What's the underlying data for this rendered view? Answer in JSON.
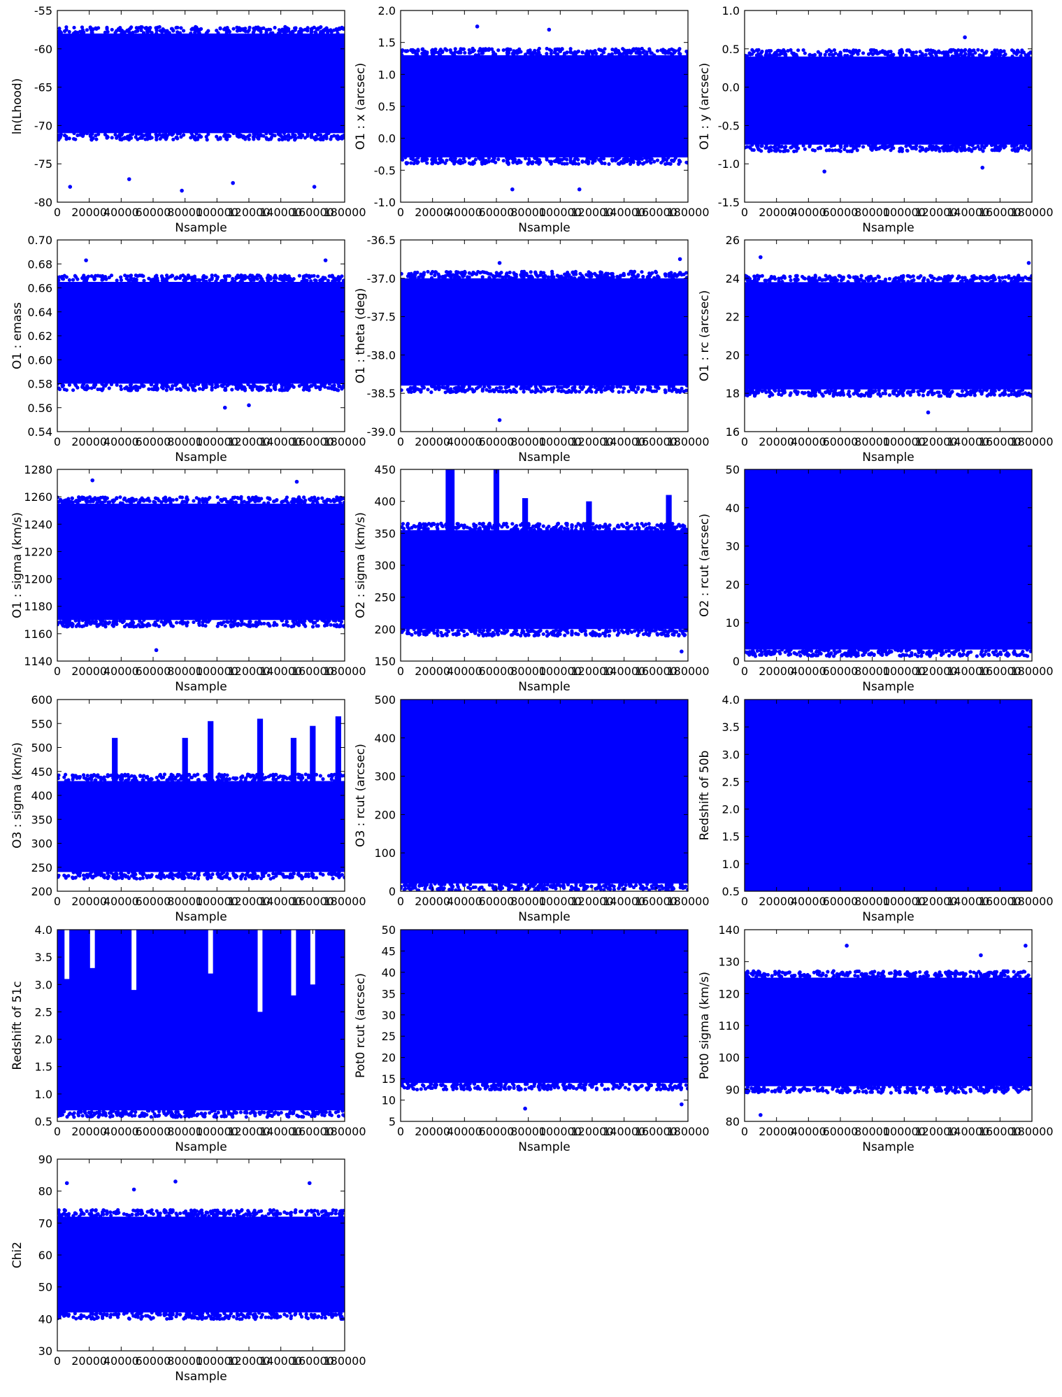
{
  "chart_data": [
    {
      "type": "scatter",
      "xlabel": "Nsample",
      "ylabel": "ln(Lhood)",
      "xlim": [
        0,
        180000
      ],
      "ylim": [
        -80,
        -55
      ],
      "xticks": [
        0,
        20000,
        40000,
        60000,
        80000,
        100000,
        120000,
        140000,
        160000,
        180000
      ],
      "yticks": [
        -80,
        -75,
        -70,
        -65,
        -60,
        -55
      ],
      "band": {
        "core_low": -71,
        "core_high": -58,
        "outliers": [
          [
            8000,
            -78
          ],
          [
            78000,
            -78.5
          ],
          [
            110000,
            -77.5
          ],
          [
            161000,
            -78
          ],
          [
            45000,
            -77
          ]
        ]
      }
    },
    {
      "type": "scatter",
      "xlabel": "Nsample",
      "ylabel": "O1 : x (arcsec)",
      "xlim": [
        0,
        180000
      ],
      "ylim": [
        -1.0,
        2.0
      ],
      "xticks": [
        0,
        20000,
        40000,
        60000,
        80000,
        100000,
        120000,
        140000,
        160000,
        180000
      ],
      "yticks": [
        -1.0,
        -0.5,
        0.0,
        0.5,
        1.0,
        1.5,
        2.0
      ],
      "band": {
        "core_low": -0.3,
        "core_high": 1.3,
        "outliers": [
          [
            48000,
            1.75
          ],
          [
            93000,
            1.7
          ],
          [
            70000,
            -0.8
          ],
          [
            112000,
            -0.8
          ]
        ]
      }
    },
    {
      "type": "scatter",
      "xlabel": "Nsample",
      "ylabel": "O1 : y (arcsec)",
      "xlim": [
        0,
        180000
      ],
      "ylim": [
        -1.5,
        1.0
      ],
      "xticks": [
        0,
        20000,
        40000,
        60000,
        80000,
        100000,
        120000,
        140000,
        160000,
        180000
      ],
      "yticks": [
        -1.5,
        -1.0,
        -0.5,
        0.0,
        0.5,
        1.0
      ],
      "band": {
        "core_low": -0.75,
        "core_high": 0.4,
        "outliers": [
          [
            138000,
            0.65
          ],
          [
            50000,
            -1.1
          ],
          [
            149000,
            -1.05
          ]
        ]
      }
    },
    {
      "type": "scatter",
      "xlabel": "Nsample",
      "ylabel": "O1 : emass",
      "xlim": [
        0,
        180000
      ],
      "ylim": [
        0.54,
        0.7
      ],
      "xticks": [
        0,
        20000,
        40000,
        60000,
        80000,
        100000,
        120000,
        140000,
        160000,
        180000
      ],
      "yticks": [
        0.54,
        0.56,
        0.58,
        0.6,
        0.62,
        0.64,
        0.66,
        0.68,
        0.7
      ],
      "band": {
        "core_low": 0.58,
        "core_high": 0.665,
        "outliers": [
          [
            18000,
            0.683
          ],
          [
            168000,
            0.683
          ],
          [
            105000,
            0.56
          ],
          [
            120000,
            0.562
          ]
        ]
      }
    },
    {
      "type": "scatter",
      "xlabel": "Nsample",
      "ylabel": "O1 : theta (deg)",
      "xlim": [
        0,
        180000
      ],
      "ylim": [
        -39.0,
        -36.5
      ],
      "xticks": [
        0,
        20000,
        40000,
        60000,
        80000,
        100000,
        120000,
        140000,
        160000,
        180000
      ],
      "yticks": [
        -39.0,
        -38.5,
        -38.0,
        -37.5,
        -37.0,
        -36.5
      ],
      "band": {
        "core_low": -38.4,
        "core_high": -37.0,
        "outliers": [
          [
            62000,
            -38.85
          ],
          [
            175000,
            -36.75
          ],
          [
            62000,
            -36.8
          ]
        ]
      }
    },
    {
      "type": "scatter",
      "xlabel": "Nsample",
      "ylabel": "O1 : rc (arcsec)",
      "xlim": [
        0,
        180000
      ],
      "ylim": [
        16,
        26
      ],
      "xticks": [
        0,
        20000,
        40000,
        60000,
        80000,
        100000,
        120000,
        140000,
        160000,
        180000
      ],
      "yticks": [
        16,
        18,
        20,
        22,
        24,
        26
      ],
      "band": {
        "core_low": 18.2,
        "core_high": 23.8,
        "outliers": [
          [
            10000,
            25.1
          ],
          [
            178000,
            24.8
          ],
          [
            115000,
            17.0
          ]
        ]
      }
    },
    {
      "type": "scatter",
      "xlabel": "Nsample",
      "ylabel": "O1 : sigma (km/s)",
      "xlim": [
        0,
        180000
      ],
      "ylim": [
        1140,
        1280
      ],
      "xticks": [
        0,
        20000,
        40000,
        60000,
        80000,
        100000,
        120000,
        140000,
        160000,
        180000
      ],
      "yticks": [
        1140,
        1160,
        1180,
        1200,
        1220,
        1240,
        1260,
        1280
      ],
      "band": {
        "core_low": 1170,
        "core_high": 1255,
        "outliers": [
          [
            22000,
            1272
          ],
          [
            150000,
            1271
          ],
          [
            62000,
            1148
          ]
        ]
      }
    },
    {
      "type": "scatter",
      "xlabel": "Nsample",
      "ylabel": "O2 : sigma (km/s)",
      "xlim": [
        0,
        180000
      ],
      "ylim": [
        150,
        450
      ],
      "xticks": [
        0,
        20000,
        40000,
        60000,
        80000,
        100000,
        120000,
        140000,
        160000,
        180000
      ],
      "yticks": [
        150,
        200,
        250,
        300,
        350,
        400,
        450
      ],
      "band": {
        "core_low": 200,
        "core_high": 355,
        "spikes": [
          [
            30000,
            450
          ],
          [
            32000,
            450
          ],
          [
            60000,
            450
          ],
          [
            78000,
            405
          ],
          [
            118000,
            400
          ],
          [
            168000,
            410
          ]
        ],
        "outliers": [
          [
            176000,
            165
          ]
        ]
      }
    },
    {
      "type": "scatter",
      "xlabel": "Nsample",
      "ylabel": "O2 : rcut (arcsec)",
      "xlim": [
        0,
        180000
      ],
      "ylim": [
        0,
        50
      ],
      "xticks": [
        0,
        20000,
        40000,
        60000,
        80000,
        100000,
        120000,
        140000,
        160000,
        180000
      ],
      "yticks": [
        0,
        10,
        20,
        30,
        40,
        50
      ],
      "band": {
        "core_low": 3,
        "core_high": 50
      }
    },
    {
      "type": "scatter",
      "xlabel": "Nsample",
      "ylabel": "O3 : sigma (km/s)",
      "xlim": [
        0,
        180000
      ],
      "ylim": [
        200,
        600
      ],
      "xticks": [
        0,
        20000,
        40000,
        60000,
        80000,
        100000,
        120000,
        140000,
        160000,
        180000
      ],
      "yticks": [
        200,
        250,
        300,
        350,
        400,
        450,
        500,
        550,
        600
      ],
      "band": {
        "core_low": 240,
        "core_high": 430,
        "spikes": [
          [
            36000,
            520
          ],
          [
            80000,
            520
          ],
          [
            96000,
            555
          ],
          [
            127000,
            560
          ],
          [
            148000,
            520
          ],
          [
            160000,
            545
          ],
          [
            176000,
            565
          ]
        ]
      }
    },
    {
      "type": "scatter",
      "xlabel": "Nsample",
      "ylabel": "O3 : rcut (arcsec)",
      "xlim": [
        0,
        180000
      ],
      "ylim": [
        0,
        500
      ],
      "xticks": [
        0,
        20000,
        40000,
        60000,
        80000,
        100000,
        120000,
        140000,
        160000,
        180000
      ],
      "yticks": [
        0,
        100,
        200,
        300,
        400,
        500
      ],
      "band": {
        "core_low": 20,
        "core_high": 500
      }
    },
    {
      "type": "scatter",
      "xlabel": "Nsample",
      "ylabel": "Redshift of 50b",
      "xlim": [
        0,
        180000
      ],
      "ylim": [
        0.5,
        4.0
      ],
      "xticks": [
        0,
        20000,
        40000,
        60000,
        80000,
        100000,
        120000,
        140000,
        160000,
        180000
      ],
      "yticks": [
        0.5,
        1.0,
        1.5,
        2.0,
        2.5,
        3.0,
        3.5,
        4.0
      ],
      "band": {
        "core_low": 0.5,
        "core_high": 4.0
      }
    },
    {
      "type": "scatter",
      "xlabel": "Nsample",
      "ylabel": "Redshift of 51c",
      "xlim": [
        0,
        180000
      ],
      "ylim": [
        0.5,
        4.0
      ],
      "xticks": [
        0,
        20000,
        40000,
        60000,
        80000,
        100000,
        120000,
        140000,
        160000,
        180000
      ],
      "yticks": [
        0.5,
        1.0,
        1.5,
        2.0,
        2.5,
        3.0,
        3.5,
        4.0
      ],
      "band": {
        "core_low": 0.7,
        "core_high": 4.0,
        "gaps": [
          [
            6000,
            3.1
          ],
          [
            22000,
            3.3
          ],
          [
            48000,
            2.9
          ],
          [
            96000,
            3.2
          ],
          [
            127000,
            2.5
          ],
          [
            148000,
            2.8
          ],
          [
            160000,
            3.0
          ]
        ]
      }
    },
    {
      "type": "scatter",
      "xlabel": "Nsample",
      "ylabel": "Pot0 rcut (arcsec)",
      "xlim": [
        0,
        180000
      ],
      "ylim": [
        5,
        50
      ],
      "xticks": [
        0,
        20000,
        40000,
        60000,
        80000,
        100000,
        120000,
        140000,
        160000,
        180000
      ],
      "yticks": [
        5,
        10,
        15,
        20,
        25,
        30,
        35,
        40,
        45,
        50
      ],
      "band": {
        "core_low": 14,
        "core_high": 50,
        "outliers": [
          [
            78000,
            8
          ],
          [
            176000,
            9
          ]
        ]
      }
    },
    {
      "type": "scatter",
      "xlabel": "Nsample",
      "ylabel": "Pot0 sigma (km/s)",
      "xlim": [
        0,
        180000
      ],
      "ylim": [
        80,
        140
      ],
      "xticks": [
        0,
        20000,
        40000,
        60000,
        80000,
        100000,
        120000,
        140000,
        160000,
        180000
      ],
      "yticks": [
        80,
        90,
        100,
        110,
        120,
        130,
        140
      ],
      "band": {
        "core_low": 91,
        "core_high": 125,
        "outliers": [
          [
            64000,
            135
          ],
          [
            176000,
            135
          ],
          [
            10000,
            82
          ],
          [
            148000,
            132
          ]
        ]
      }
    },
    {
      "type": "scatter",
      "xlabel": "Nsample",
      "ylabel": "Chi2",
      "xlim": [
        0,
        180000
      ],
      "ylim": [
        30,
        90
      ],
      "xticks": [
        0,
        20000,
        40000,
        60000,
        80000,
        100000,
        120000,
        140000,
        160000,
        180000
      ],
      "yticks": [
        30,
        40,
        50,
        60,
        70,
        80,
        90
      ],
      "band": {
        "core_low": 42,
        "core_high": 72,
        "outliers": [
          [
            6000,
            82.5
          ],
          [
            74000,
            83
          ],
          [
            158000,
            82.5
          ],
          [
            48000,
            80.5
          ]
        ]
      }
    }
  ],
  "colors": {
    "points": "#0000ff",
    "frame": "#000000",
    "background": "#ffffff"
  }
}
